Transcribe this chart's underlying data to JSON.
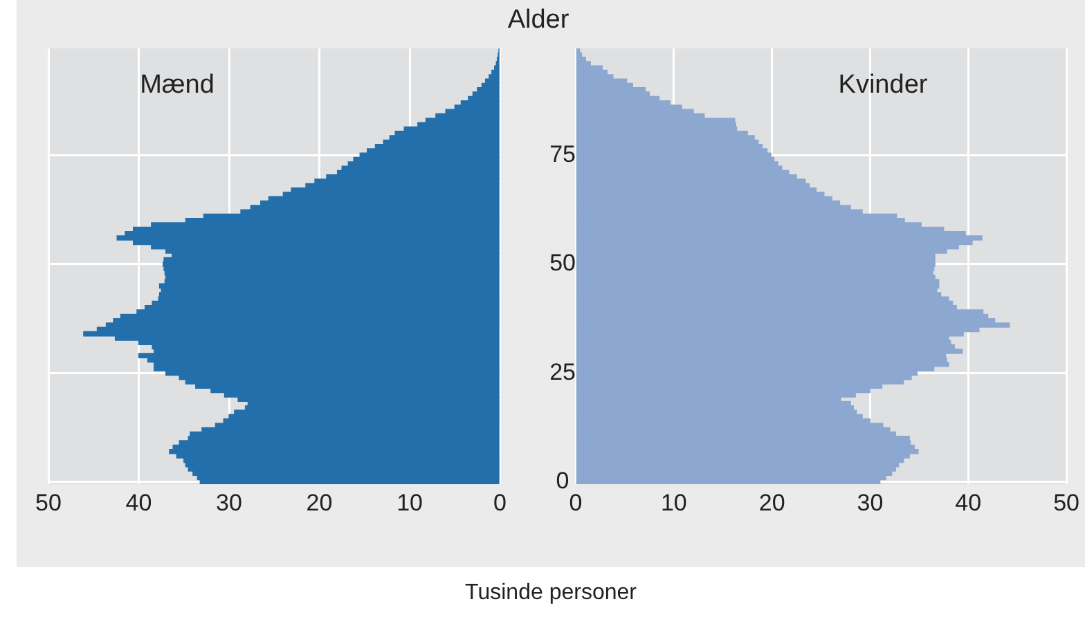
{
  "chart_data": [
    {
      "type": "bar",
      "orientation": "horizontal",
      "xlabel": "Tusinde personer",
      "grid": true,
      "tick_labels": "x",
      "xlim": [
        50,
        0
      ],
      "xticks": [
        50,
        40,
        30,
        20,
        10,
        0
      ],
      "categories": [
        null,
        null,
        null,
        null,
        null,
        null,
        null,
        null,
        null,
        null,
        null,
        null,
        null,
        null,
        null,
        null,
        null,
        null,
        null,
        null,
        null,
        null,
        null,
        null,
        "75",
        null,
        null,
        null,
        null,
        null,
        null,
        null,
        null,
        null,
        null,
        null,
        null,
        null,
        null,
        null,
        null,
        null,
        null,
        null,
        null,
        null,
        null,
        null,
        null,
        "50",
        null,
        null,
        null,
        null,
        null,
        null,
        null,
        null,
        null,
        null,
        null,
        null,
        null,
        null,
        null,
        null,
        null,
        null,
        null,
        null,
        null,
        null,
        null,
        null,
        "25",
        null,
        null,
        null,
        null,
        null,
        null,
        null,
        null,
        null,
        null,
        null,
        null,
        null,
        null,
        null,
        null,
        null,
        null,
        null,
        null,
        null,
        null,
        null,
        null,
        "0"
      ],
      "series": [
        {
          "name": "Mænd",
          "color": "#236fab",
          "values": [
            0.1,
            0.2,
            0.3,
            0.4,
            0.6,
            0.9,
            1.2,
            1.6,
            2.0,
            2.5,
            3.0,
            3.5,
            4.3,
            5.0,
            6.0,
            7.1,
            8.2,
            9.1,
            10.6,
            11.6,
            12.2,
            12.9,
            13.8,
            14.7,
            15.5,
            16.2,
            16.8,
            17.5,
            18.0,
            19.2,
            20.5,
            21.5,
            23.1,
            24.0,
            25.6,
            26.5,
            27.6,
            28.7,
            32.8,
            34.8,
            38.6,
            40.6,
            41.5,
            42.4,
            40.6,
            38.6,
            37.0,
            36.3,
            37.2,
            37.3,
            37.2,
            37.1,
            37.0,
            37.1,
            37.7,
            37.5,
            37.7,
            37.8,
            38.5,
            39.3,
            40.2,
            42.0,
            42.8,
            43.6,
            44.6,
            46.1,
            42.6,
            40.0,
            38.5,
            38.3,
            40.0,
            39.0,
            38.3,
            38.3,
            37.0,
            35.5,
            34.8,
            33.7,
            32.0,
            30.5,
            29.0,
            27.9,
            28.2,
            29.4,
            30.0,
            30.6,
            31.5,
            33.0,
            34.3,
            34.5,
            35.5,
            36.2,
            36.6,
            35.8,
            35.0,
            34.8,
            34.5,
            34.0,
            33.5,
            33.2
          ]
        }
      ]
    },
    {
      "type": "bar",
      "orientation": "horizontal",
      "ylabel": "Alder",
      "grid": true,
      "xlim": [
        0,
        50
      ],
      "xticks": [
        0,
        10,
        20,
        30,
        40,
        50
      ],
      "categories": [
        null,
        null,
        null,
        null,
        null,
        null,
        null,
        null,
        null,
        null,
        null,
        null,
        null,
        null,
        null,
        null,
        null,
        null,
        null,
        null,
        null,
        null,
        null,
        null,
        "75",
        null,
        null,
        null,
        null,
        null,
        null,
        null,
        null,
        null,
        null,
        null,
        null,
        null,
        null,
        null,
        null,
        null,
        null,
        null,
        null,
        null,
        null,
        null,
        null,
        "50",
        null,
        null,
        null,
        null,
        null,
        null,
        null,
        null,
        null,
        null,
        null,
        null,
        null,
        null,
        null,
        null,
        null,
        null,
        null,
        null,
        null,
        null,
        null,
        null,
        "25",
        null,
        null,
        null,
        null,
        null,
        null,
        null,
        null,
        null,
        null,
        null,
        null,
        null,
        null,
        null,
        null,
        null,
        null,
        null,
        null,
        null,
        null,
        null,
        null,
        "0"
      ],
      "series": [
        {
          "name": "Kvinder",
          "color": "#8ca8d0",
          "values": [
            0.4,
            0.6,
            1.0,
            1.5,
            2.7,
            3.2,
            3.8,
            5.2,
            5.8,
            7.1,
            7.5,
            8.5,
            9.6,
            10.8,
            12.0,
            13.1,
            16.2,
            16.3,
            16.4,
            17.5,
            18.2,
            18.6,
            19.0,
            19.5,
            19.9,
            20.2,
            20.6,
            21.0,
            21.7,
            22.5,
            23.4,
            23.8,
            24.5,
            25.3,
            26.1,
            26.9,
            28.0,
            29.2,
            32.7,
            33.5,
            35.2,
            37.5,
            39.7,
            41.4,
            40.4,
            39.0,
            37.8,
            36.6,
            36.6,
            36.6,
            36.5,
            36.4,
            36.6,
            37.0,
            37.0,
            36.8,
            37.2,
            38.0,
            38.4,
            38.8,
            41.5,
            42.0,
            42.7,
            44.2,
            41.1,
            39.5,
            38.0,
            38.2,
            38.6,
            39.4,
            37.7,
            37.8,
            38.0,
            36.5,
            34.8,
            34.2,
            33.4,
            31.2,
            30.0,
            28.5,
            27.0,
            28.0,
            28.3,
            28.6,
            29.2,
            30.0,
            31.3,
            32.0,
            32.6,
            34.0,
            34.1,
            34.5,
            34.9,
            34.0,
            33.4,
            32.9,
            32.6,
            32.2,
            31.6,
            31.0
          ]
        }
      ]
    }
  ]
}
